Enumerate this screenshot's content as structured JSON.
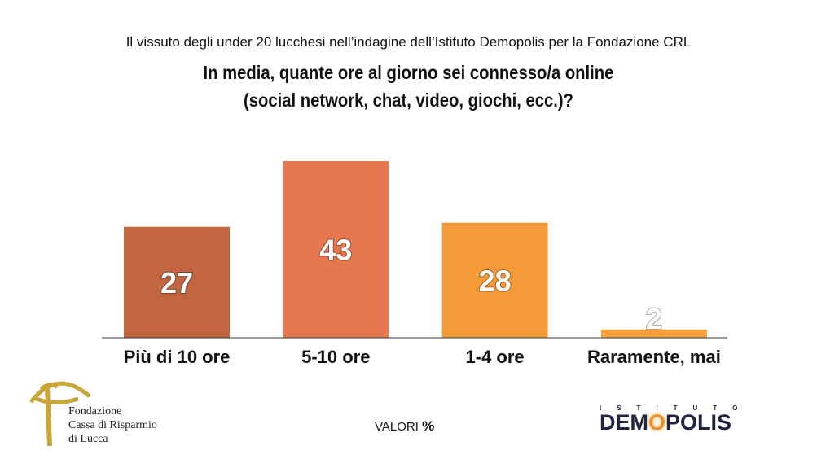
{
  "header": {
    "supertitle": "Il vissuto degli under 20 lucchesi nell’indagine dell’Istituto Demopolis per la Fondazione CRL",
    "title_line1": "In media, quante ore al giorno sei connesso/a online",
    "title_line2": "(social network, chat, video, giochi, ecc.)?"
  },
  "chart_data": {
    "type": "bar",
    "categories": [
      "Più di 10 ore",
      "5-10 ore",
      "1-4 ore",
      "Raramente, mai"
    ],
    "values": [
      27,
      43,
      28,
      2
    ],
    "colors": [
      "#c26642",
      "#e6774e",
      "#f59a38",
      "#f8a13a"
    ],
    "ylim": [
      0,
      43
    ],
    "grid": false,
    "legend": "none",
    "unit_note": "VALORI %"
  },
  "footer": {
    "note_label": "VALORI",
    "note_unit": "%",
    "left_logo": {
      "line1": "Fondazione",
      "line2": "Cassa di Risparmio",
      "line3": "di Lucca",
      "color": "#c9a63a"
    },
    "right_logo": {
      "sup": "ISTITUTO",
      "main_pre": "DEM",
      "main_o": "O",
      "main_post": "POLIS",
      "color": "#1f2340",
      "accent": "#f0a030"
    }
  }
}
